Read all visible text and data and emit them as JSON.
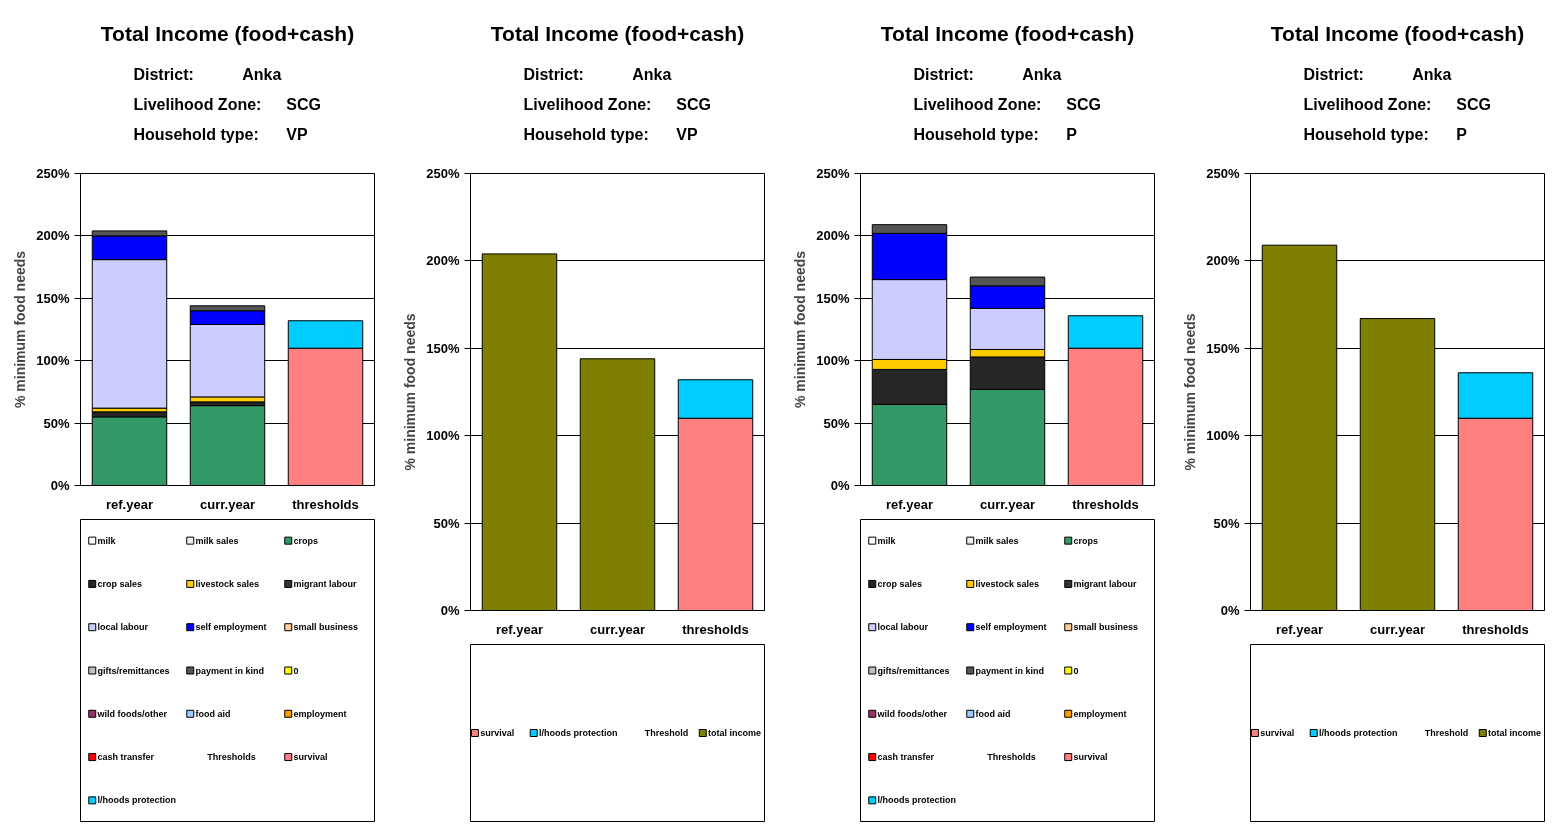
{
  "chart_data": [
    {
      "type": "bar",
      "stacked": true,
      "title": "Total Income (food+cash)",
      "annotations": [
        "District:",
        "Anka",
        "Livelihood Zone:",
        "SCG",
        "Household type:",
        "VP"
      ],
      "ylabel": "% minimum food needs",
      "categories": [
        "ref.year",
        "curr.year",
        "thresholds"
      ],
      "ylim": [
        0,
        250
      ],
      "yticks": [
        {
          "value": 0,
          "label": "0%"
        },
        {
          "value": 50,
          "label": "50%"
        },
        {
          "value": 100,
          "label": "100%"
        },
        {
          "value": 150,
          "label": "150%"
        },
        {
          "value": 200,
          "label": "200%"
        },
        {
          "value": 250,
          "label": "250%"
        }
      ],
      "grid": "y",
      "legend": "bottom",
      "series": [
        {
          "name": "milk",
          "color": "#ffffff",
          "values": [
            0,
            0,
            0
          ]
        },
        {
          "name": "milk sales",
          "color": "#f0f0f0",
          "values": [
            0,
            0,
            0
          ]
        },
        {
          "name": "crops",
          "color": "#339966",
          "values": [
            55,
            64,
            0
          ]
        },
        {
          "name": "crop sales",
          "color": "#262626",
          "values": [
            4,
            3,
            0
          ]
        },
        {
          "name": "livestock sales",
          "color": "#ffcc00",
          "values": [
            3,
            4,
            0
          ]
        },
        {
          "name": "migrant labour",
          "color": "#333333",
          "values": [
            0,
            0,
            0
          ]
        },
        {
          "name": "local labour",
          "color": "#ccccff",
          "values": [
            119,
            58,
            0
          ]
        },
        {
          "name": "self employment",
          "color": "#0000ff",
          "values": [
            19,
            11,
            0
          ]
        },
        {
          "name": "small business",
          "color": "#ffcc99",
          "values": [
            0,
            0,
            0
          ]
        },
        {
          "name": "gifts/remittances",
          "color": "#c0c0c0",
          "values": [
            0,
            0,
            0
          ]
        },
        {
          "name": "payment in kind",
          "color": "#555555",
          "values": [
            4,
            4,
            0
          ]
        },
        {
          "name": "0",
          "color": "#ffff00",
          "values": [
            0,
            0,
            0
          ]
        },
        {
          "name": "wild foods/other",
          "color": "#993366",
          "values": [
            0,
            0,
            0
          ]
        },
        {
          "name": "food aid",
          "color": "#99ccff",
          "values": [
            0,
            0,
            0
          ]
        },
        {
          "name": "employment",
          "color": "#ff9900",
          "values": [
            0,
            0,
            0
          ]
        },
        {
          "name": "cash transfer",
          "color": "#ff0000",
          "values": [
            0,
            0,
            0
          ]
        },
        {
          "name": "Thresholds",
          "values": [
            0,
            0,
            0
          ]
        },
        {
          "name": "survival",
          "color": "#ff8080",
          "values": [
            0,
            0,
            110
          ]
        },
        {
          "name": "l/hoods protection",
          "color": "#00ccff",
          "values": [
            0,
            0,
            22
          ]
        }
      ]
    },
    {
      "type": "bar",
      "stacked": true,
      "title": "Total Income (food+cash)",
      "annotations": [
        "District:",
        "Anka",
        "Livelihood Zone:",
        "SCG",
        "Household type:",
        "VP"
      ],
      "ylabel": "% minimum food needs",
      "categories": [
        "ref.year",
        "curr.year",
        "thresholds"
      ],
      "ylim": [
        0,
        250
      ],
      "yticks": [
        {
          "value": 0,
          "label": "0%"
        },
        {
          "value": 50,
          "label": "50%"
        },
        {
          "value": 100,
          "label": "100%"
        },
        {
          "value": 150,
          "label": "150%"
        },
        {
          "value": 200,
          "label": "200%"
        },
        {
          "value": 250,
          "label": "250%"
        }
      ],
      "grid": "y",
      "legend": "bottom",
      "series": [
        {
          "name": "survival",
          "color": "#ff8080",
          "values": [
            0,
            0,
            110
          ]
        },
        {
          "name": "l/hoods protection",
          "color": "#00ccff",
          "values": [
            0,
            0,
            22
          ]
        },
        {
          "name": "Threshold",
          "values": [
            0,
            0,
            0
          ]
        },
        {
          "name": "total income",
          "color": "#808000",
          "values": [
            204,
            144,
            0
          ]
        }
      ]
    },
    {
      "type": "bar",
      "stacked": true,
      "title": "Total Income (food+cash)",
      "annotations": [
        "District:",
        "Anka",
        "Livelihood Zone:",
        "SCG",
        "Household type:",
        "P"
      ],
      "ylabel": "% minimum food needs",
      "categories": [
        "ref.year",
        "curr.year",
        "thresholds"
      ],
      "ylim": [
        0,
        250
      ],
      "yticks": [
        {
          "value": 0,
          "label": "0%"
        },
        {
          "value": 50,
          "label": "50%"
        },
        {
          "value": 100,
          "label": "100%"
        },
        {
          "value": 150,
          "label": "150%"
        },
        {
          "value": 200,
          "label": "200%"
        },
        {
          "value": 250,
          "label": "250%"
        }
      ],
      "grid": "y",
      "legend": "bottom",
      "series": [
        {
          "name": "milk",
          "color": "#ffffff",
          "values": [
            0,
            0,
            0
          ]
        },
        {
          "name": "milk sales",
          "color": "#f0f0f0",
          "values": [
            0,
            0,
            0
          ]
        },
        {
          "name": "crops",
          "color": "#339966",
          "values": [
            65,
            77,
            0
          ]
        },
        {
          "name": "crop sales",
          "color": "#262626",
          "values": [
            28,
            26,
            0
          ]
        },
        {
          "name": "livestock sales",
          "color": "#ffcc00",
          "values": [
            8,
            6,
            0
          ]
        },
        {
          "name": "migrant labour",
          "color": "#333333",
          "values": [
            0,
            0,
            0
          ]
        },
        {
          "name": "local labour",
          "color": "#ccccff",
          "values": [
            64,
            33,
            0
          ]
        },
        {
          "name": "self employment",
          "color": "#0000ff",
          "values": [
            37,
            18,
            0
          ]
        },
        {
          "name": "small business",
          "color": "#ffcc99",
          "values": [
            0,
            0,
            0
          ]
        },
        {
          "name": "gifts/remittances",
          "color": "#c0c0c0",
          "values": [
            0,
            0,
            0
          ]
        },
        {
          "name": "payment in kind",
          "color": "#555555",
          "values": [
            7,
            7,
            0
          ]
        },
        {
          "name": "0",
          "color": "#ffff00",
          "values": [
            0,
            0,
            0
          ]
        },
        {
          "name": "wild foods/other",
          "color": "#993366",
          "values": [
            0,
            0,
            0
          ]
        },
        {
          "name": "food aid",
          "color": "#99ccff",
          "values": [
            0,
            0,
            0
          ]
        },
        {
          "name": "employment",
          "color": "#ff9900",
          "values": [
            0,
            0,
            0
          ]
        },
        {
          "name": "cash transfer",
          "color": "#ff0000",
          "values": [
            0,
            0,
            0
          ]
        },
        {
          "name": "Thresholds",
          "values": [
            0,
            0,
            0
          ]
        },
        {
          "name": "survival",
          "color": "#ff8080",
          "values": [
            0,
            0,
            110
          ]
        },
        {
          "name": "l/hoods protection",
          "color": "#00ccff",
          "values": [
            0,
            0,
            26
          ]
        }
      ]
    },
    {
      "type": "bar",
      "stacked": true,
      "title": "Total Income (food+cash)",
      "annotations": [
        "District:",
        "Anka",
        "Livelihood Zone:",
        "SCG",
        "Household type:",
        "P"
      ],
      "ylabel": "% minimum food needs",
      "categories": [
        "ref.year",
        "curr.year",
        "thresholds"
      ],
      "ylim": [
        0,
        250
      ],
      "yticks": [
        {
          "value": 0,
          "label": "0%"
        },
        {
          "value": 50,
          "label": "50%"
        },
        {
          "value": 100,
          "label": "100%"
        },
        {
          "value": 150,
          "label": "150%"
        },
        {
          "value": 200,
          "label": "200%"
        },
        {
          "value": 250,
          "label": "250%"
        }
      ],
      "grid": "y",
      "legend": "bottom",
      "series": [
        {
          "name": "survival",
          "color": "#ff8080",
          "values": [
            0,
            0,
            110
          ]
        },
        {
          "name": "l/hoods protection",
          "color": "#00ccff",
          "values": [
            0,
            0,
            26
          ]
        },
        {
          "name": "Threshold",
          "values": [
            0,
            0,
            0
          ]
        },
        {
          "name": "total income",
          "color": "#808000",
          "values": [
            209,
            167,
            0
          ]
        }
      ]
    }
  ]
}
